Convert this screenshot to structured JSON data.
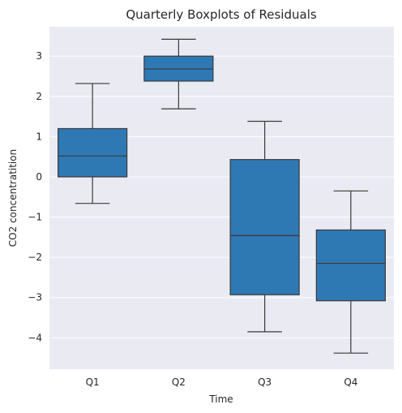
{
  "chart_data": {
    "type": "boxplot",
    "title": "Quarterly Boxplots of Residuals",
    "xlabel": "Time",
    "ylabel": "CO2 concentratition",
    "categories": [
      "Q1",
      "Q2",
      "Q3",
      "Q4"
    ],
    "boxes": [
      {
        "category": "Q1",
        "whisker_low": -0.66,
        "q1": 0.0,
        "median": 0.52,
        "q3": 1.2,
        "whisker_high": 2.32
      },
      {
        "category": "Q2",
        "whisker_low": 1.69,
        "q1": 2.38,
        "median": 2.68,
        "q3": 3.0,
        "whisker_high": 3.42
      },
      {
        "category": "Q3",
        "whisker_low": -3.85,
        "q1": -2.93,
        "median": -1.46,
        "q3": 0.43,
        "whisker_high": 1.38
      },
      {
        "category": "Q4",
        "whisker_low": -4.38,
        "q1": -3.08,
        "median": -2.15,
        "q3": -1.32,
        "whisker_high": -0.35
      }
    ],
    "yticks": [
      -4,
      -3,
      -2,
      -1,
      0,
      1,
      2,
      3
    ],
    "ylim": [
      -4.78,
      3.73
    ],
    "grid": true,
    "colors": {
      "box_fill": "#2e78b4",
      "line": "#3a3a3a",
      "plot_background": "#eaeaf2",
      "grid": "#ffffff"
    }
  }
}
